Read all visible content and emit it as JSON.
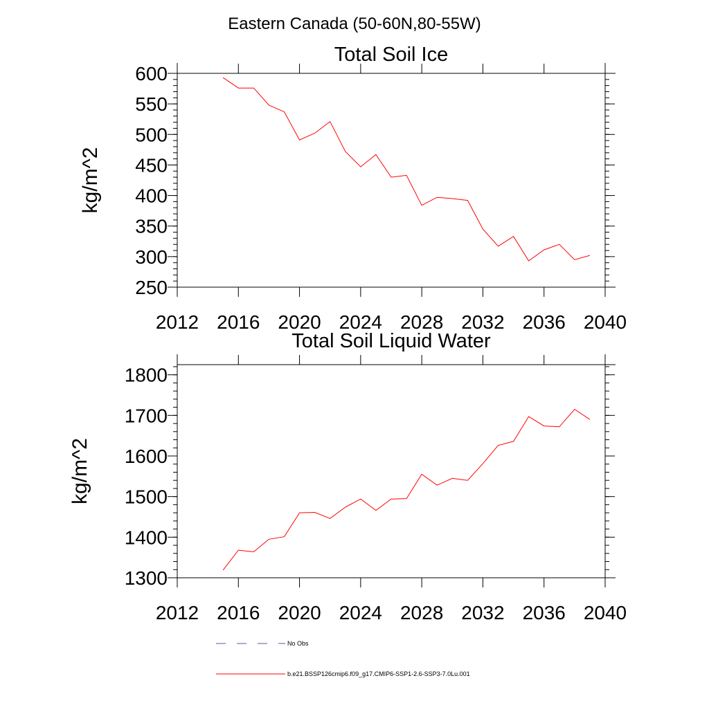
{
  "main_title": "Eastern Canada (50-60N,80-55W)",
  "colors": {
    "series": "#ff0000",
    "obs": "#5a5a9a",
    "axis": "#000000"
  },
  "legend": {
    "obs_label": "No Obs",
    "model_label": "b.e21.BSSP126cmip6.f09_g17.CMIP6-SSP1-2.6-SSP3-7.0Lu.001"
  },
  "chart_data": [
    {
      "type": "line",
      "title": "Total Soil Ice",
      "ylabel": "kg/m^2",
      "xlabel": "",
      "xlim": [
        2012,
        2040
      ],
      "ylim": [
        250,
        600
      ],
      "x_ticks": [
        2012,
        2016,
        2020,
        2024,
        2028,
        2032,
        2036,
        2040
      ],
      "y_ticks": [
        250,
        300,
        350,
        400,
        450,
        500,
        550,
        600
      ],
      "x_minor_step": 1,
      "y_minor_step": 10,
      "grid": false,
      "series": [
        {
          "x": [
            2015,
            2016,
            2017,
            2018,
            2019,
            2020,
            2021,
            2022,
            2023,
            2024,
            2025,
            2026,
            2027,
            2028,
            2029,
            2030,
            2031,
            2032,
            2033,
            2034,
            2035,
            2036,
            2037,
            2038,
            2039
          ],
          "values": [
            593,
            576,
            576,
            548,
            537,
            491,
            502,
            521,
            472,
            447,
            467,
            430,
            433,
            384,
            397,
            395,
            392,
            345,
            317,
            333,
            293,
            311,
            320,
            295,
            302
          ]
        }
      ]
    },
    {
      "type": "line",
      "title": "Total Soil Liquid Water",
      "ylabel": "kg/m^2",
      "xlabel": "",
      "xlim": [
        2012,
        2040
      ],
      "ylim": [
        1300,
        1825
      ],
      "x_ticks": [
        2012,
        2016,
        2020,
        2024,
        2028,
        2032,
        2036,
        2040
      ],
      "y_ticks": [
        1300,
        1400,
        1500,
        1600,
        1700,
        1800
      ],
      "x_minor_step": 1,
      "y_minor_step": 20,
      "grid": false,
      "series": [
        {
          "x": [
            2015,
            2016,
            2017,
            2018,
            2019,
            2020,
            2021,
            2022,
            2023,
            2024,
            2025,
            2026,
            2027,
            2028,
            2029,
            2030,
            2031,
            2032,
            2033,
            2034,
            2035,
            2036,
            2037,
            2038,
            2039
          ],
          "values": [
            1319,
            1368,
            1364,
            1395,
            1401,
            1460,
            1461,
            1446,
            1474,
            1494,
            1466,
            1494,
            1495,
            1555,
            1528,
            1545,
            1540,
            1581,
            1626,
            1636,
            1697,
            1674,
            1672,
            1715,
            1690
          ]
        }
      ]
    }
  ]
}
